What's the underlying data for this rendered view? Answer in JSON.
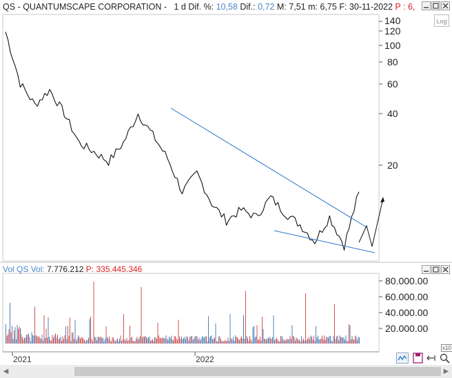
{
  "header": {
    "ticker": "QS",
    "name": "QUANTUMSCAPE CORPORATION",
    "period": "1 d",
    "dif_pct_label": "Dif. %:",
    "dif_pct_value": "10,58",
    "dif_label": "Dif.:",
    "dif_value": "0,72",
    "max_label": "M:",
    "max_value": "7,51",
    "min_label": "m:",
    "min_value": "6,75",
    "date_label": "F:",
    "date_value": "30-11-2022",
    "trunc_label": "P :",
    "trunc_value": "6,"
  },
  "log_button": "Log",
  "price_axis": [
    "140",
    "120",
    "100",
    "80",
    "60",
    "40",
    "20"
  ],
  "volume_header": {
    "vol_label": "Vol",
    "series": "QS Vol:",
    "value": "7.776.212",
    "p_label": "P:",
    "p_value": "335.445.346"
  },
  "volume_axis": [
    "80.000.00",
    "60.000.00",
    "40.000.00",
    "20.000.00"
  ],
  "volume_multiplier": "x10",
  "time_axis": [
    "2021",
    "2022"
  ],
  "colors": {
    "price_line": "#111111",
    "trendline": "#2a78c8",
    "volume_up": "#d05050",
    "volume_down": "#4f7fb8",
    "accent": "#4a86c8",
    "negative": "#dd2222"
  },
  "chart_data": {
    "type": "line",
    "scale": "log",
    "x_labels": [
      "2021",
      "2022"
    ],
    "ylim": [
      6,
      150
    ],
    "close_keypoints": [
      120,
      60,
      45,
      55,
      40,
      27,
      24,
      21,
      27,
      40,
      30,
      22,
      14,
      18,
      12,
      9.5,
      11,
      10,
      13,
      10.5,
      9,
      7.2,
      10,
      6.8,
      14
    ]
  }
}
